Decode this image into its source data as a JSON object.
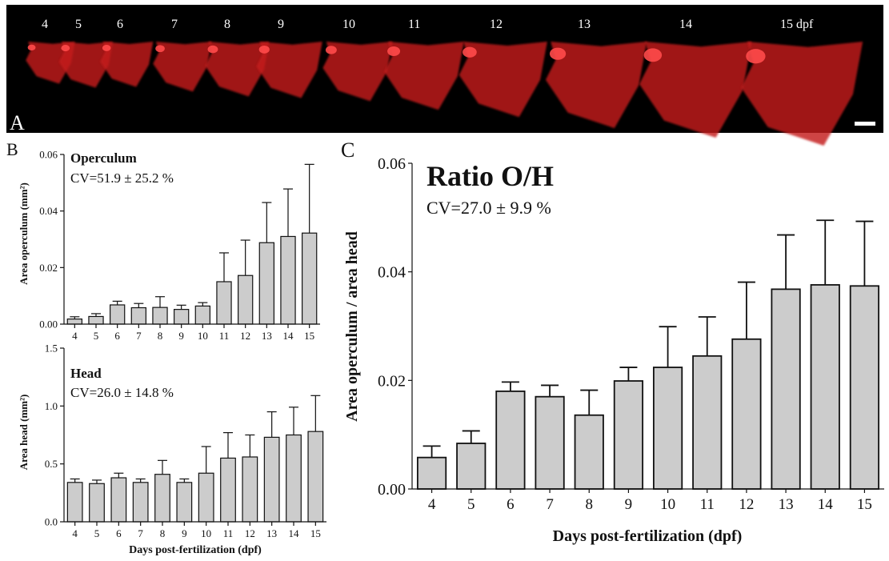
{
  "panel_a": {
    "label": "A",
    "stage_labels": [
      "4",
      "5",
      "6",
      "7",
      "8",
      "9",
      "10",
      "11",
      "12",
      "13",
      "14",
      "15 dpf"
    ],
    "growth": [
      0.22,
      0.27,
      0.26,
      0.32,
      0.38,
      0.4,
      0.44,
      0.55,
      0.64,
      0.78,
      0.9,
      1.0
    ],
    "background_color": "#000000",
    "stain_color": "#c41e1e"
  },
  "colors": {
    "bar_fill": "#cccccc",
    "bar_stroke": "#111111"
  },
  "chart_data": [
    {
      "panel": "B",
      "type": "bar",
      "title": "Operculum",
      "subtitle": "CV=51.9 ± 25.2 %",
      "xlabel": "",
      "ylabel": "Area operculum (mm²)",
      "categories": [
        "4",
        "5",
        "6",
        "7",
        "8",
        "9",
        "10",
        "11",
        "12",
        "13",
        "14",
        "15"
      ],
      "values": [
        0.0018,
        0.0027,
        0.0068,
        0.0058,
        0.0059,
        0.0052,
        0.0064,
        0.015,
        0.0172,
        0.0288,
        0.031,
        0.0322
      ],
      "error": [
        0.0008,
        0.001,
        0.0013,
        0.0015,
        0.0038,
        0.0015,
        0.0012,
        0.0102,
        0.0125,
        0.0142,
        0.0168,
        0.0243
      ],
      "ylim": [
        0,
        0.06
      ],
      "yticks": [
        0,
        0.02,
        0.04,
        0.06
      ],
      "ytick_labels": [
        "0.00",
        "0.02",
        "0.04",
        "0.06"
      ]
    },
    {
      "panel": "",
      "type": "bar",
      "title": "Head",
      "subtitle": "CV=26.0 ± 14.8 %",
      "xlabel": "Days post-fertilization (dpf)",
      "ylabel": "Area head (mm²)",
      "categories": [
        "4",
        "5",
        "6",
        "7",
        "8",
        "9",
        "10",
        "11",
        "12",
        "13",
        "14",
        "15"
      ],
      "values": [
        0.34,
        0.33,
        0.38,
        0.34,
        0.41,
        0.34,
        0.42,
        0.55,
        0.56,
        0.73,
        0.75,
        0.78
      ],
      "error": [
        0.03,
        0.03,
        0.04,
        0.03,
        0.12,
        0.03,
        0.23,
        0.22,
        0.19,
        0.22,
        0.24,
        0.31
      ],
      "ylim": [
        0,
        1.5
      ],
      "yticks": [
        0,
        0.5,
        1.0,
        1.5
      ],
      "ytick_labels": [
        "0.0",
        "0.5",
        "1.0",
        "1.5"
      ]
    },
    {
      "panel": "C",
      "type": "bar",
      "title": "Ratio O/H",
      "subtitle": "CV=27.0 ± 9.9 %",
      "xlabel": "Days post-fertilization (dpf)",
      "ylabel": "Area operculum / area head",
      "categories": [
        "4",
        "5",
        "6",
        "7",
        "8",
        "9",
        "10",
        "11",
        "12",
        "13",
        "14",
        "15"
      ],
      "values": [
        0.0058,
        0.0084,
        0.018,
        0.017,
        0.0136,
        0.0199,
        0.0224,
        0.0245,
        0.0276,
        0.0368,
        0.0376,
        0.0374
      ],
      "error": [
        0.0021,
        0.0023,
        0.0017,
        0.0021,
        0.0046,
        0.0025,
        0.0075,
        0.0072,
        0.0105,
        0.01,
        0.0119,
        0.0119
      ],
      "ylim": [
        0,
        0.06
      ],
      "yticks": [
        0,
        0.02,
        0.04,
        0.06
      ],
      "ytick_labels": [
        "0.00",
        "0.02",
        "0.04",
        "0.06"
      ]
    }
  ]
}
